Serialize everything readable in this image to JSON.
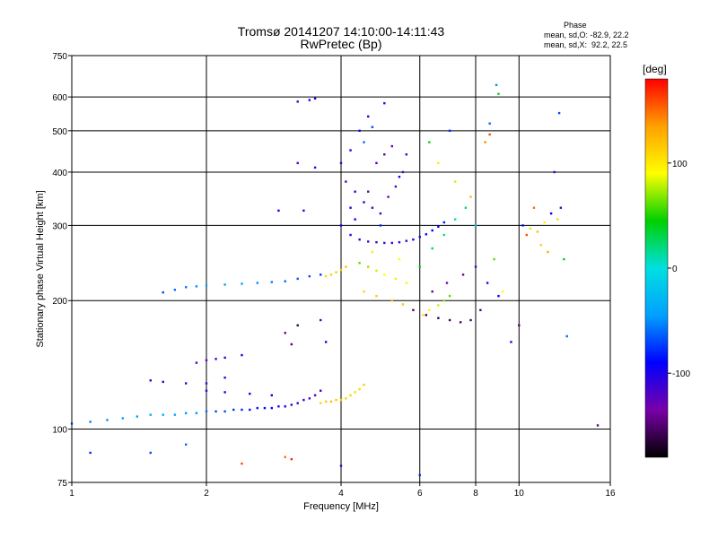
{
  "chart_data": {
    "type": "scatter",
    "title": "Tromsø 20141207 14:10:00-14:11:43",
    "subtitle": "RwPretec (Bp)",
    "xlabel": "Frequency [MHz]",
    "ylabel": "Stationary phase Virtual Height [km]",
    "x_scale": "log",
    "y_scale": "log",
    "xlim": [
      1,
      16
    ],
    "ylim": [
      75,
      750
    ],
    "x_ticks": [
      1,
      2,
      4,
      6,
      8,
      10,
      16
    ],
    "x_tick_labels": [
      "1",
      "2",
      "4",
      "6",
      "8",
      "10",
      "16"
    ],
    "x_grid": [
      1,
      2,
      4,
      6,
      8,
      10,
      16
    ],
    "y_ticks": [
      75,
      100,
      200,
      300,
      400,
      500,
      600,
      750
    ],
    "y_tick_labels": [
      "75",
      "100",
      "200",
      "300",
      "400",
      "500",
      "600",
      "750"
    ],
    "y_grid": [
      100,
      200,
      300,
      400,
      500,
      600
    ],
    "grid": true,
    "colorbar": {
      "label": "[deg]",
      "range": [
        -180,
        180
      ],
      "ticks": [
        100,
        0,
        -100
      ],
      "tick_labels": [
        "100",
        "0",
        "-100"
      ],
      "colors": [
        "#000000",
        "#7a00a8",
        "#0000ff",
        "#00a0ff",
        "#00e0e0",
        "#00d000",
        "#ffff00",
        "#ffa000",
        "#ff0000"
      ]
    },
    "phase_stats": {
      "heading": "Phase",
      "o_line": "mean, sd,O: -82.9, 22.2",
      "x_line": "mean, sd,X:  92.2, 22.5"
    },
    "series": [
      {
        "values": [
          [
            1.0,
            103,
            -60
          ],
          [
            1.1,
            104,
            -55
          ],
          [
            1.2,
            105,
            -50
          ],
          [
            1.3,
            106,
            -45
          ],
          [
            1.4,
            107,
            -45
          ],
          [
            1.5,
            108,
            -40
          ],
          [
            1.6,
            108,
            -40
          ],
          [
            1.7,
            108,
            -45
          ],
          [
            1.8,
            109,
            -50
          ],
          [
            1.9,
            109,
            -50
          ],
          [
            2.0,
            110,
            -60
          ],
          [
            2.1,
            110,
            -70
          ],
          [
            2.2,
            110,
            -70
          ],
          [
            2.3,
            111,
            -75
          ],
          [
            2.4,
            111,
            -80
          ],
          [
            2.5,
            111,
            -85
          ],
          [
            2.6,
            112,
            -85
          ],
          [
            2.7,
            112,
            -90
          ],
          [
            2.8,
            112,
            -95
          ],
          [
            2.9,
            113,
            -100
          ],
          [
            3.0,
            113,
            -100
          ],
          [
            3.1,
            114,
            -105
          ],
          [
            3.2,
            115,
            -110
          ],
          [
            3.3,
            117,
            -115
          ],
          [
            3.4,
            118,
            -120
          ],
          [
            3.5,
            120,
            -120
          ],
          [
            3.6,
            123,
            -115
          ]
        ]
      },
      {
        "values": [
          [
            1.6,
            209,
            -70
          ],
          [
            1.7,
            212,
            -60
          ],
          [
            1.8,
            215,
            -55
          ],
          [
            1.9,
            216,
            -50
          ],
          [
            2.0,
            217,
            -40
          ],
          [
            2.2,
            218,
            -40
          ],
          [
            2.4,
            219,
            -45
          ],
          [
            2.6,
            220,
            -50
          ],
          [
            2.8,
            221,
            -55
          ],
          [
            3.0,
            222,
            -60
          ],
          [
            3.2,
            225,
            -65
          ],
          [
            3.4,
            228,
            -70
          ],
          [
            3.6,
            230,
            -75
          ]
        ]
      },
      {
        "values": [
          [
            1.5,
            130,
            -100
          ],
          [
            1.6,
            129,
            -110
          ],
          [
            1.8,
            128,
            -115
          ],
          [
            2.0,
            128,
            -115
          ],
          [
            2.2,
            132,
            -110
          ],
          [
            1.9,
            143,
            -120
          ],
          [
            2.0,
            145,
            -125
          ],
          [
            2.1,
            146,
            -120
          ],
          [
            2.2,
            147,
            -110
          ],
          [
            2.4,
            149,
            -100
          ],
          [
            2.0,
            123,
            -110
          ],
          [
            2.2,
            122,
            -100
          ],
          [
            2.5,
            121,
            -95
          ],
          [
            2.8,
            120,
            -90
          ]
        ]
      },
      {
        "values": [
          [
            3.6,
            115,
            110
          ],
          [
            3.7,
            116,
            115
          ],
          [
            3.8,
            116,
            120
          ],
          [
            3.9,
            117,
            118
          ],
          [
            4.0,
            117,
            115
          ],
          [
            4.1,
            118,
            112
          ],
          [
            4.2,
            120,
            110
          ],
          [
            4.3,
            122,
            108
          ],
          [
            4.4,
            124,
            110
          ],
          [
            4.5,
            127,
            115
          ]
        ]
      },
      {
        "values": [
          [
            3.7,
            228,
            110
          ],
          [
            3.8,
            230,
            112
          ],
          [
            3.9,
            233,
            115
          ],
          [
            4.0,
            236,
            118
          ],
          [
            4.1,
            240,
            120
          ]
        ]
      },
      {
        "values": [
          [
            4.0,
            300,
            -100
          ],
          [
            4.2,
            285,
            -105
          ],
          [
            4.4,
            278,
            -110
          ],
          [
            4.6,
            275,
            -115
          ],
          [
            4.8,
            274,
            -115
          ],
          [
            5.0,
            273,
            -115
          ],
          [
            5.2,
            273,
            -110
          ],
          [
            5.4,
            274,
            -110
          ],
          [
            5.6,
            276,
            -105
          ],
          [
            5.8,
            278,
            -100
          ],
          [
            6.0,
            282,
            -100
          ],
          [
            6.2,
            286,
            -95
          ],
          [
            6.4,
            292,
            -90
          ],
          [
            6.6,
            298,
            -90
          ],
          [
            6.8,
            305,
            -85
          ]
        ]
      },
      {
        "values": [
          [
            4.0,
            420,
            -110
          ],
          [
            4.2,
            450,
            -100
          ],
          [
            4.4,
            500,
            -90
          ],
          [
            4.6,
            540,
            -100
          ],
          [
            5.0,
            580,
            -110
          ],
          [
            4.1,
            380,
            -120
          ],
          [
            4.3,
            360,
            -110
          ],
          [
            4.5,
            340,
            -100
          ],
          [
            4.7,
            330,
            -120
          ],
          [
            4.9,
            320,
            -110
          ],
          [
            5.1,
            350,
            -130
          ],
          [
            5.3,
            370,
            -120
          ],
          [
            5.5,
            400,
            -110
          ],
          [
            4.2,
            330,
            -100
          ],
          [
            4.6,
            360,
            -140
          ],
          [
            4.8,
            420,
            -120
          ],
          [
            5.2,
            460,
            -130
          ],
          [
            5.6,
            440,
            -110
          ],
          [
            4.3,
            310,
            -90
          ],
          [
            4.9,
            300,
            -80
          ],
          [
            5.4,
            390,
            -100
          ],
          [
            4.5,
            470,
            -60
          ],
          [
            4.7,
            510,
            -70
          ],
          [
            5.0,
            440,
            -140
          ]
        ]
      },
      {
        "values": [
          [
            4.4,
            245,
            60
          ],
          [
            4.6,
            240,
            70
          ],
          [
            4.8,
            235,
            80
          ],
          [
            5.0,
            230,
            90
          ],
          [
            5.3,
            225,
            100
          ],
          [
            5.6,
            220,
            95
          ],
          [
            4.5,
            210,
            110
          ],
          [
            4.8,
            205,
            115
          ],
          [
            5.2,
            200,
            120
          ],
          [
            5.5,
            196,
            118
          ],
          [
            5.8,
            190,
            110
          ],
          [
            6.1,
            185,
            105
          ],
          [
            6.3,
            190,
            95
          ],
          [
            6.6,
            195,
            80
          ],
          [
            6.8,
            200,
            70
          ],
          [
            7.0,
            205,
            60
          ],
          [
            4.7,
            260,
            100
          ],
          [
            5.4,
            250,
            90
          ],
          [
            6.0,
            240,
            40
          ],
          [
            6.4,
            265,
            30
          ],
          [
            6.8,
            285,
            20
          ],
          [
            7.2,
            310,
            10
          ]
        ]
      },
      {
        "values": [
          [
            5.8,
            190,
            -150
          ],
          [
            6.2,
            185,
            -155
          ],
          [
            6.6,
            182,
            -160
          ],
          [
            7.0,
            180,
            -155
          ],
          [
            7.4,
            178,
            -150
          ],
          [
            7.8,
            180,
            -150
          ],
          [
            6.4,
            210,
            -140
          ],
          [
            6.9,
            220,
            -135
          ],
          [
            7.5,
            230,
            -140
          ],
          [
            8.0,
            240,
            -120
          ],
          [
            8.5,
            220,
            -100
          ],
          [
            9.0,
            205,
            -90
          ],
          [
            8.2,
            190,
            -150
          ],
          [
            8.8,
            250,
            60
          ],
          [
            9.2,
            210,
            90
          ],
          [
            7.6,
            330,
            20
          ],
          [
            8.0,
            300,
            -20
          ],
          [
            6.6,
            420,
            100
          ],
          [
            7.2,
            380,
            80
          ],
          [
            7.8,
            350,
            120
          ],
          [
            6.3,
            470,
            40
          ],
          [
            7.0,
            500,
            -80
          ],
          [
            8.4,
            470,
            140
          ],
          [
            8.6,
            520,
            -60
          ]
        ]
      },
      {
        "values": [
          [
            10.2,
            300,
            -100
          ],
          [
            10.6,
            295,
            80
          ],
          [
            11.0,
            290,
            120
          ],
          [
            11.4,
            305,
            100
          ],
          [
            11.8,
            320,
            -90
          ],
          [
            12.2,
            310,
            110
          ],
          [
            10.8,
            330,
            150
          ],
          [
            11.6,
            260,
            130
          ],
          [
            12.6,
            250,
            40
          ],
          [
            12.0,
            400,
            -110
          ],
          [
            12.4,
            330,
            -120
          ],
          [
            10.4,
            285,
            160
          ],
          [
            11.2,
            270,
            110
          ],
          [
            12.8,
            165,
            -60
          ],
          [
            12.3,
            550,
            -70
          ]
        ]
      },
      {
        "values": [
          [
            1.1,
            88,
            -80
          ],
          [
            1.5,
            88,
            -70
          ],
          [
            1.8,
            92,
            -60
          ],
          [
            2.4,
            83,
            160
          ],
          [
            3.0,
            86,
            150
          ],
          [
            3.1,
            85,
            170
          ],
          [
            4.0,
            82,
            -110
          ],
          [
            6.0,
            78,
            -80
          ],
          [
            15.0,
            102,
            -140
          ],
          [
            3.2,
            420,
            -120
          ],
          [
            3.3,
            325,
            -110
          ],
          [
            2.9,
            325,
            -90
          ],
          [
            3.2,
            585,
            -110
          ],
          [
            3.4,
            590,
            -100
          ],
          [
            3.5,
            595,
            -95
          ],
          [
            3.5,
            410,
            -110
          ],
          [
            3.0,
            168,
            -140
          ],
          [
            3.1,
            158,
            -150
          ],
          [
            3.2,
            175,
            -160
          ],
          [
            3.6,
            180,
            -120
          ],
          [
            3.7,
            160,
            -100
          ],
          [
            8.9,
            640,
            -50
          ],
          [
            9.0,
            610,
            40
          ],
          [
            8.6,
            490,
            160
          ],
          [
            9.6,
            160,
            -110
          ],
          [
            10.0,
            175,
            -150
          ]
        ]
      }
    ]
  }
}
